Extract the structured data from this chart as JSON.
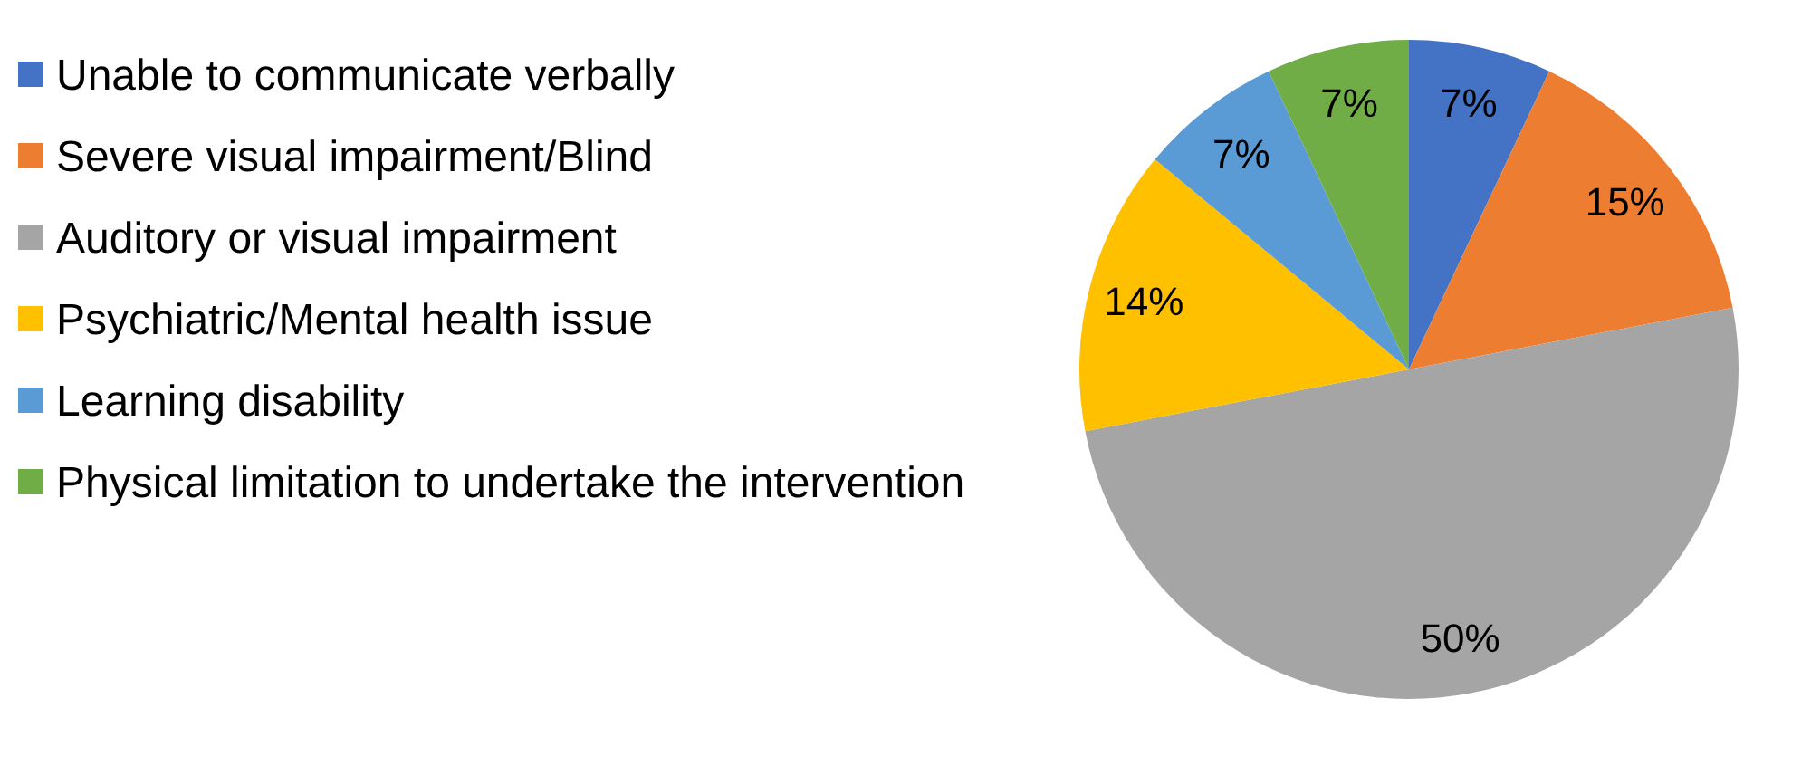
{
  "chart_data": {
    "type": "pie",
    "categories": [
      "Unable to communicate verbally",
      "Severe visual impairment/Blind",
      "Auditory or visual impairment",
      "Psychiatric/Mental health issue",
      "Learning disability",
      "Physical limitation to undertake the intervention"
    ],
    "values": [
      7,
      15,
      50,
      14,
      7,
      7
    ],
    "colors": [
      "#4472c4",
      "#ed7d31",
      "#a5a5a5",
      "#ffc000",
      "#5b9bd5",
      "#70ad47"
    ],
    "value_labels": [
      "7%",
      "15%",
      "50%",
      "14%",
      "7%",
      "7%"
    ],
    "legend": "left"
  }
}
